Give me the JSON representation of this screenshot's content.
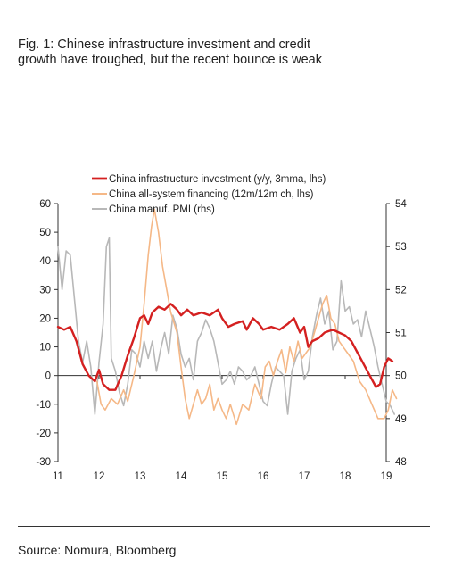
{
  "title_line1": "Fig. 1: Chinese infrastructure investment and credit",
  "title_line2": "growth have troughed, but the recent bounce is weak",
  "source": "Source: Nomura, Bloomberg",
  "chart_data": {
    "type": "line",
    "x_ticks": [
      "11",
      "12",
      "13",
      "14",
      "15",
      "16",
      "17",
      "18",
      "19"
    ],
    "y_left": {
      "range": [
        -30,
        60
      ],
      "ticks": [
        -30,
        -20,
        -10,
        0,
        10,
        20,
        30,
        40,
        50,
        60
      ]
    },
    "y_right": {
      "range": [
        48,
        54
      ],
      "ticks": [
        48,
        49,
        50,
        51,
        52,
        53,
        54
      ]
    },
    "grid": false,
    "legend_position": "top-left",
    "series": [
      {
        "name": "China infrastructure investment (y/y, 3mma, lhs)",
        "axis": "left",
        "color": "#d42020",
        "width": 2.4,
        "points": [
          [
            2011.0,
            17
          ],
          [
            2011.15,
            16
          ],
          [
            2011.3,
            17
          ],
          [
            2011.45,
            12
          ],
          [
            2011.6,
            4
          ],
          [
            2011.75,
            0
          ],
          [
            2011.9,
            -2
          ],
          [
            2012.0,
            2
          ],
          [
            2012.1,
            -3
          ],
          [
            2012.25,
            -5
          ],
          [
            2012.4,
            -5
          ],
          [
            2012.55,
            0
          ],
          [
            2012.7,
            7
          ],
          [
            2012.85,
            13
          ],
          [
            2013.0,
            20
          ],
          [
            2013.1,
            21
          ],
          [
            2013.2,
            18
          ],
          [
            2013.3,
            22
          ],
          [
            2013.45,
            24
          ],
          [
            2013.6,
            23
          ],
          [
            2013.75,
            25
          ],
          [
            2013.9,
            23
          ],
          [
            2014.0,
            21
          ],
          [
            2014.15,
            23
          ],
          [
            2014.3,
            21
          ],
          [
            2014.5,
            22
          ],
          [
            2014.7,
            21
          ],
          [
            2014.9,
            23
          ],
          [
            2015.0,
            20
          ],
          [
            2015.15,
            17
          ],
          [
            2015.3,
            18
          ],
          [
            2015.5,
            19
          ],
          [
            2015.6,
            16
          ],
          [
            2015.75,
            20
          ],
          [
            2015.9,
            18
          ],
          [
            2016.0,
            16
          ],
          [
            2016.2,
            17
          ],
          [
            2016.4,
            16
          ],
          [
            2016.6,
            18
          ],
          [
            2016.75,
            20
          ],
          [
            2016.9,
            15
          ],
          [
            2017.0,
            17
          ],
          [
            2017.1,
            10
          ],
          [
            2017.2,
            12
          ],
          [
            2017.35,
            13
          ],
          [
            2017.5,
            15
          ],
          [
            2017.7,
            16
          ],
          [
            2017.85,
            15
          ],
          [
            2018.0,
            14
          ],
          [
            2018.15,
            12
          ],
          [
            2018.3,
            8
          ],
          [
            2018.45,
            4
          ],
          [
            2018.6,
            0
          ],
          [
            2018.75,
            -4
          ],
          [
            2018.85,
            -3
          ],
          [
            2018.95,
            3
          ],
          [
            2019.05,
            6
          ],
          [
            2019.15,
            5
          ]
        ]
      },
      {
        "name": "China all-system financing (12m/12m ch, lhs)",
        "axis": "left",
        "color": "#f5b887",
        "width": 1.6,
        "points": [
          [
            2011.95,
            -2
          ],
          [
            2012.05,
            -10
          ],
          [
            2012.15,
            -12
          ],
          [
            2012.3,
            -8
          ],
          [
            2012.45,
            -10
          ],
          [
            2012.6,
            -5
          ],
          [
            2012.7,
            -9
          ],
          [
            2012.85,
            0
          ],
          [
            2013.0,
            10
          ],
          [
            2013.1,
            25
          ],
          [
            2013.2,
            42
          ],
          [
            2013.28,
            52
          ],
          [
            2013.35,
            58
          ],
          [
            2013.45,
            50
          ],
          [
            2013.55,
            38
          ],
          [
            2013.65,
            30
          ],
          [
            2013.75,
            22
          ],
          [
            2013.9,
            15
          ],
          [
            2014.0,
            3
          ],
          [
            2014.1,
            -8
          ],
          [
            2014.2,
            -15
          ],
          [
            2014.3,
            -10
          ],
          [
            2014.4,
            -5
          ],
          [
            2014.5,
            -10
          ],
          [
            2014.6,
            -8
          ],
          [
            2014.7,
            -3
          ],
          [
            2014.8,
            -12
          ],
          [
            2014.9,
            -8
          ],
          [
            2015.0,
            -12
          ],
          [
            2015.1,
            -15
          ],
          [
            2015.2,
            -10
          ],
          [
            2015.35,
            -17
          ],
          [
            2015.5,
            -10
          ],
          [
            2015.65,
            -12
          ],
          [
            2015.8,
            -3
          ],
          [
            2015.95,
            -8
          ],
          [
            2016.05,
            3
          ],
          [
            2016.15,
            5
          ],
          [
            2016.25,
            0
          ],
          [
            2016.35,
            5
          ],
          [
            2016.45,
            9
          ],
          [
            2016.55,
            1
          ],
          [
            2016.65,
            10
          ],
          [
            2016.75,
            5
          ],
          [
            2016.85,
            12
          ],
          [
            2016.95,
            6
          ],
          [
            2017.05,
            8
          ],
          [
            2017.15,
            10
          ],
          [
            2017.25,
            15
          ],
          [
            2017.35,
            20
          ],
          [
            2017.45,
            25
          ],
          [
            2017.55,
            28
          ],
          [
            2017.65,
            20
          ],
          [
            2017.75,
            18
          ],
          [
            2017.85,
            12
          ],
          [
            2017.95,
            10
          ],
          [
            2018.05,
            8
          ],
          [
            2018.2,
            5
          ],
          [
            2018.35,
            -2
          ],
          [
            2018.5,
            -5
          ],
          [
            2018.65,
            -10
          ],
          [
            2018.8,
            -15
          ],
          [
            2018.95,
            -15
          ],
          [
            2019.05,
            -12
          ],
          [
            2019.15,
            -5
          ],
          [
            2019.25,
            -8
          ]
        ]
      },
      {
        "name": "China manuf. PMI (rhs)",
        "axis": "right",
        "color": "#b8b8b8",
        "width": 1.6,
        "points": [
          [
            2011.0,
            53.0
          ],
          [
            2011.1,
            52.0
          ],
          [
            2011.2,
            52.9
          ],
          [
            2011.3,
            52.8
          ],
          [
            2011.4,
            51.8
          ],
          [
            2011.5,
            50.8
          ],
          [
            2011.6,
            50.3
          ],
          [
            2011.7,
            50.8
          ],
          [
            2011.8,
            50.2
          ],
          [
            2011.9,
            49.1
          ],
          [
            2012.0,
            50.3
          ],
          [
            2012.1,
            51.2
          ],
          [
            2012.18,
            53.0
          ],
          [
            2012.25,
            53.2
          ],
          [
            2012.3,
            50.4
          ],
          [
            2012.4,
            50.1
          ],
          [
            2012.5,
            49.6
          ],
          [
            2012.6,
            49.3
          ],
          [
            2012.7,
            49.8
          ],
          [
            2012.8,
            50.6
          ],
          [
            2012.9,
            50.5
          ],
          [
            2013.0,
            50.2
          ],
          [
            2013.1,
            50.8
          ],
          [
            2013.2,
            50.4
          ],
          [
            2013.3,
            50.8
          ],
          [
            2013.4,
            50.1
          ],
          [
            2013.5,
            50.6
          ],
          [
            2013.6,
            51.0
          ],
          [
            2013.7,
            50.5
          ],
          [
            2013.8,
            51.4
          ],
          [
            2013.9,
            51.1
          ],
          [
            2014.0,
            50.5
          ],
          [
            2014.1,
            50.2
          ],
          [
            2014.2,
            50.4
          ],
          [
            2014.3,
            49.9
          ],
          [
            2014.4,
            50.8
          ],
          [
            2014.5,
            51.0
          ],
          [
            2014.6,
            51.3
          ],
          [
            2014.7,
            51.1
          ],
          [
            2014.8,
            50.8
          ],
          [
            2014.9,
            50.3
          ],
          [
            2015.0,
            49.8
          ],
          [
            2015.1,
            49.9
          ],
          [
            2015.2,
            50.1
          ],
          [
            2015.3,
            49.8
          ],
          [
            2015.4,
            50.2
          ],
          [
            2015.5,
            50.1
          ],
          [
            2015.6,
            49.9
          ],
          [
            2015.7,
            50.0
          ],
          [
            2015.8,
            50.2
          ],
          [
            2015.9,
            49.8
          ],
          [
            2016.0,
            49.4
          ],
          [
            2016.1,
            49.3
          ],
          [
            2016.2,
            49.8
          ],
          [
            2016.3,
            50.2
          ],
          [
            2016.4,
            50.1
          ],
          [
            2016.5,
            50.0
          ],
          [
            2016.6,
            49.1
          ],
          [
            2016.7,
            50.1
          ],
          [
            2016.8,
            50.4
          ],
          [
            2016.9,
            50.6
          ],
          [
            2017.0,
            49.9
          ],
          [
            2017.1,
            50.1
          ],
          [
            2017.2,
            50.9
          ],
          [
            2017.3,
            51.4
          ],
          [
            2017.4,
            51.8
          ],
          [
            2017.5,
            51.2
          ],
          [
            2017.6,
            51.5
          ],
          [
            2017.7,
            50.6
          ],
          [
            2017.8,
            50.8
          ],
          [
            2017.9,
            52.2
          ],
          [
            2018.0,
            51.5
          ],
          [
            2018.1,
            51.6
          ],
          [
            2018.2,
            51.2
          ],
          [
            2018.3,
            51.3
          ],
          [
            2018.4,
            50.9
          ],
          [
            2018.5,
            51.5
          ],
          [
            2018.6,
            51.1
          ],
          [
            2018.7,
            50.7
          ],
          [
            2018.8,
            50.2
          ],
          [
            2018.9,
            49.8
          ],
          [
            2019.0,
            49.4
          ],
          [
            2019.1,
            49.3
          ],
          [
            2019.2,
            49.1
          ]
        ]
      }
    ]
  }
}
